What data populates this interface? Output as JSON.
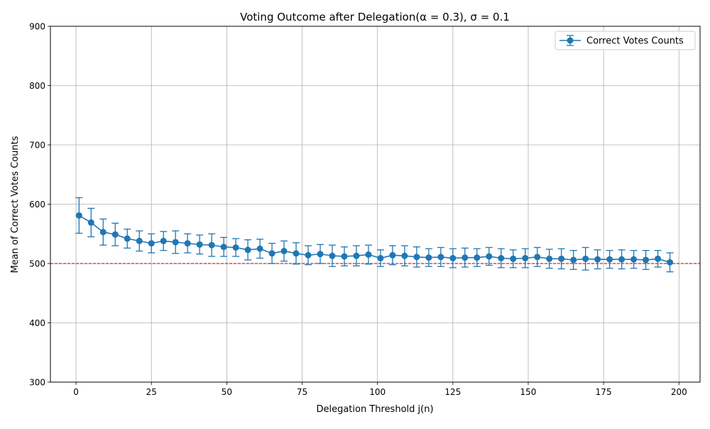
{
  "chart_data": {
    "type": "line",
    "title": "Voting Outcome after Delegation(α = 0.3), σ = 0.1",
    "xlabel": "Delegation Threshold j(n)",
    "ylabel": "Mean of Correct Votes Counts",
    "xlim": [
      -8.5,
      207
    ],
    "ylim": [
      300,
      900
    ],
    "xticks": [
      "0",
      "25",
      "50",
      "75",
      "100",
      "125",
      "150",
      "175",
      "200"
    ],
    "yticks": [
      "300",
      "400",
      "500",
      "600",
      "700",
      "800",
      "900"
    ],
    "grid": true,
    "legend_position": "top-right",
    "reference_line": {
      "y": 500,
      "color": "#d62728",
      "style": "dashed"
    },
    "series": [
      {
        "name": "Correct Votes Counts",
        "color": "#1f77b4",
        "marker": "circle",
        "error_bars": true,
        "x": [
          1,
          5,
          9,
          13,
          17,
          21,
          25,
          29,
          33,
          37,
          41,
          45,
          49,
          53,
          57,
          61,
          65,
          69,
          73,
          77,
          81,
          85,
          89,
          93,
          97,
          101,
          105,
          109,
          113,
          117,
          121,
          125,
          129,
          133,
          137,
          141,
          145,
          149,
          153,
          157,
          161,
          165,
          169,
          173,
          177,
          181,
          185,
          189,
          193,
          197
        ],
        "y": [
          581,
          569,
          553,
          549,
          542,
          538,
          534,
          538,
          536,
          534,
          532,
          531,
          528,
          527,
          523,
          525,
          517,
          521,
          517,
          514,
          516,
          513,
          512,
          513,
          515,
          509,
          514,
          513,
          511,
          510,
          511,
          509,
          510,
          510,
          512,
          509,
          508,
          509,
          511,
          508,
          508,
          506,
          508,
          507,
          507,
          507,
          507,
          506,
          508,
          502
        ],
        "error": [
          30,
          24,
          22,
          19,
          16,
          17,
          16,
          16,
          19,
          16,
          16,
          19,
          16,
          15,
          17,
          16,
          17,
          17,
          18,
          16,
          16,
          18,
          16,
          17,
          16,
          14,
          16,
          17,
          17,
          15,
          16,
          16,
          16,
          15,
          15,
          16,
          15,
          16,
          16,
          16,
          17,
          16,
          19,
          16,
          15,
          16,
          15,
          16,
          14,
          16
        ]
      }
    ]
  }
}
